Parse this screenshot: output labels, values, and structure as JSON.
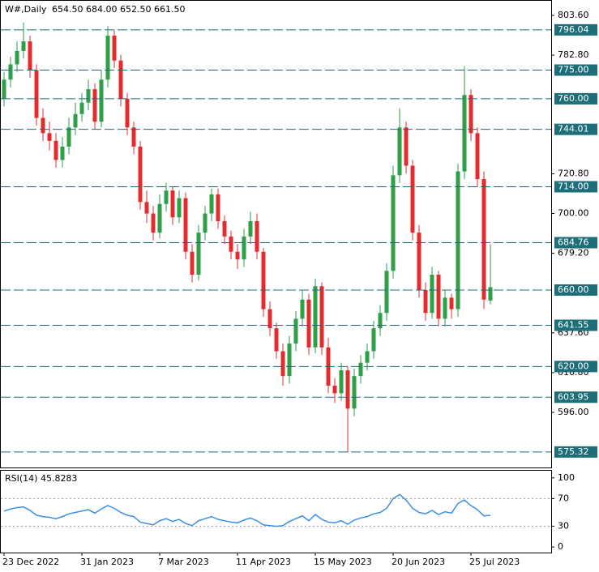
{
  "chart_data": [
    {
      "type": "candlestick",
      "title": "W#,Daily",
      "subtitle": "654.50 684.00 652.50 661.50",
      "categories": [
        "23 Dec 2022",
        null,
        null,
        null,
        null,
        null,
        null,
        null,
        null,
        null,
        null,
        null,
        "31 Jan 2023",
        null,
        null,
        null,
        null,
        null,
        null,
        null,
        null,
        null,
        null,
        null,
        "7 Mar 2023",
        null,
        null,
        null,
        null,
        null,
        null,
        null,
        null,
        null,
        null,
        null,
        "11 Apr 2023",
        null,
        null,
        null,
        null,
        null,
        null,
        null,
        null,
        null,
        null,
        null,
        "15 May 2023",
        null,
        null,
        null,
        null,
        null,
        null,
        null,
        null,
        null,
        null,
        null,
        "20 Jun 2023",
        null,
        null,
        null,
        null,
        null,
        null,
        null,
        null,
        null,
        null,
        null,
        "25 Jul 2023",
        null,
        null,
        null
      ],
      "open": [
        760,
        770,
        778,
        785,
        790,
        775,
        750,
        742,
        738,
        728,
        735,
        745,
        752,
        758,
        765,
        748,
        770,
        793,
        780,
        760,
        745,
        735,
        706,
        700,
        690,
        705,
        712,
        698,
        708,
        680,
        668,
        690,
        700,
        710,
        696,
        688,
        680,
        676,
        688,
        696,
        680,
        650,
        640,
        628,
        615,
        632,
        645,
        655,
        630,
        662,
        630,
        610,
        606,
        618,
        598,
        615,
        622,
        628,
        640,
        648,
        670,
        720,
        745,
        725,
        690,
        660,
        648,
        668,
        645,
        656,
        650,
        722,
        762,
        742,
        718,
        654.5
      ],
      "high": [
        774,
        782,
        790,
        800,
        793,
        778,
        755,
        748,
        742,
        740,
        750,
        758,
        763,
        770,
        768,
        775,
        798,
        796,
        783,
        763,
        748,
        738,
        712,
        704,
        710,
        716,
        714,
        712,
        711,
        684,
        694,
        704,
        713,
        713,
        699,
        691,
        684,
        692,
        701,
        700,
        682,
        654,
        643,
        632,
        636,
        649,
        660,
        658,
        666,
        664,
        635,
        614,
        622,
        620,
        619,
        626,
        632,
        644,
        652,
        674,
        725,
        755,
        748,
        728,
        694,
        664,
        672,
        670,
        660,
        658,
        726,
        777,
        765,
        745,
        722,
        684
      ],
      "low": [
        756,
        766,
        774,
        781,
        771,
        746,
        738,
        733,
        724,
        724,
        731,
        741,
        748,
        754,
        744,
        745,
        766,
        776,
        756,
        741,
        731,
        702,
        695,
        686,
        687,
        701,
        694,
        695,
        676,
        664,
        665,
        686,
        696,
        692,
        684,
        676,
        671,
        672,
        684,
        676,
        646,
        636,
        624,
        610,
        611,
        628,
        641,
        626,
        627,
        626,
        606,
        601,
        602,
        575,
        594,
        611,
        618,
        624,
        636,
        644,
        666,
        716,
        721,
        686,
        656,
        644,
        645,
        641,
        641,
        645,
        646,
        718,
        738,
        714,
        650,
        652.5
      ],
      "close": [
        770,
        778,
        785,
        790,
        775,
        750,
        742,
        738,
        728,
        735,
        745,
        752,
        758,
        765,
        748,
        770,
        793,
        780,
        760,
        745,
        735,
        706,
        700,
        690,
        705,
        712,
        698,
        708,
        680,
        668,
        690,
        700,
        710,
        696,
        688,
        680,
        676,
        688,
        696,
        680,
        650,
        640,
        628,
        615,
        632,
        645,
        655,
        630,
        662,
        630,
        610,
        606,
        618,
        598,
        615,
        622,
        628,
        640,
        648,
        670,
        720,
        745,
        725,
        690,
        660,
        648,
        668,
        645,
        656,
        650,
        722,
        762,
        742,
        718,
        655,
        661.5
      ],
      "up_color": "#2e9e48",
      "down_color": "#e32b2b",
      "ylim": [
        567.2,
        811.65
      ],
      "yticks": [
        {
          "value": 803.6,
          "label": "803.60"
        },
        {
          "value": 782.8,
          "label": "782.80"
        },
        {
          "value": 720.8,
          "label": "720.80"
        },
        {
          "value": 700,
          "label": "700.00"
        },
        {
          "value": 679.2,
          "label": "679.20"
        },
        {
          "value": 637.6,
          "label": "637.60"
        },
        {
          "value": 616.8,
          "label": "616.80"
        },
        {
          "value": 596,
          "label": "596.00"
        }
      ],
      "levels": [
        {
          "value": 796.04,
          "label": "796.04"
        },
        {
          "value": 775,
          "label": "775.00"
        },
        {
          "value": 760,
          "label": "760.00"
        },
        {
          "value": 744.01,
          "label": "744.01"
        },
        {
          "value": 714,
          "label": "714.00"
        },
        {
          "value": 684.76,
          "label": "684.76"
        },
        {
          "value": 660,
          "label": "660.00"
        },
        {
          "value": 641.55,
          "label": "641.55"
        },
        {
          "value": 620,
          "label": "620.00"
        },
        {
          "value": 603.95,
          "label": "603.95"
        },
        {
          "value": 575.32,
          "label": "575.32"
        }
      ],
      "level_color": "#1c6e78"
    },
    {
      "type": "line",
      "title": "RSI(14) 45.8283",
      "values": [
        52,
        55,
        57,
        58,
        53,
        46,
        44,
        43,
        41,
        44,
        48,
        50,
        52,
        54,
        49,
        55,
        60,
        56,
        50,
        46,
        44,
        36,
        34,
        32,
        38,
        41,
        37,
        40,
        34,
        31,
        38,
        41,
        44,
        40,
        38,
        36,
        35,
        39,
        42,
        38,
        32,
        31,
        30,
        31,
        37,
        41,
        45,
        38,
        47,
        40,
        36,
        35,
        38,
        33,
        39,
        42,
        44,
        48,
        50,
        56,
        70,
        76,
        68,
        56,
        50,
        48,
        53,
        47,
        51,
        49,
        63,
        68,
        60,
        54,
        45,
        45.8283
      ],
      "color": "#3a8ee6",
      "ylim": [
        -8,
        111.5
      ],
      "yticks": [
        100,
        70,
        30,
        0
      ],
      "levels": [
        70,
        30
      ]
    }
  ]
}
